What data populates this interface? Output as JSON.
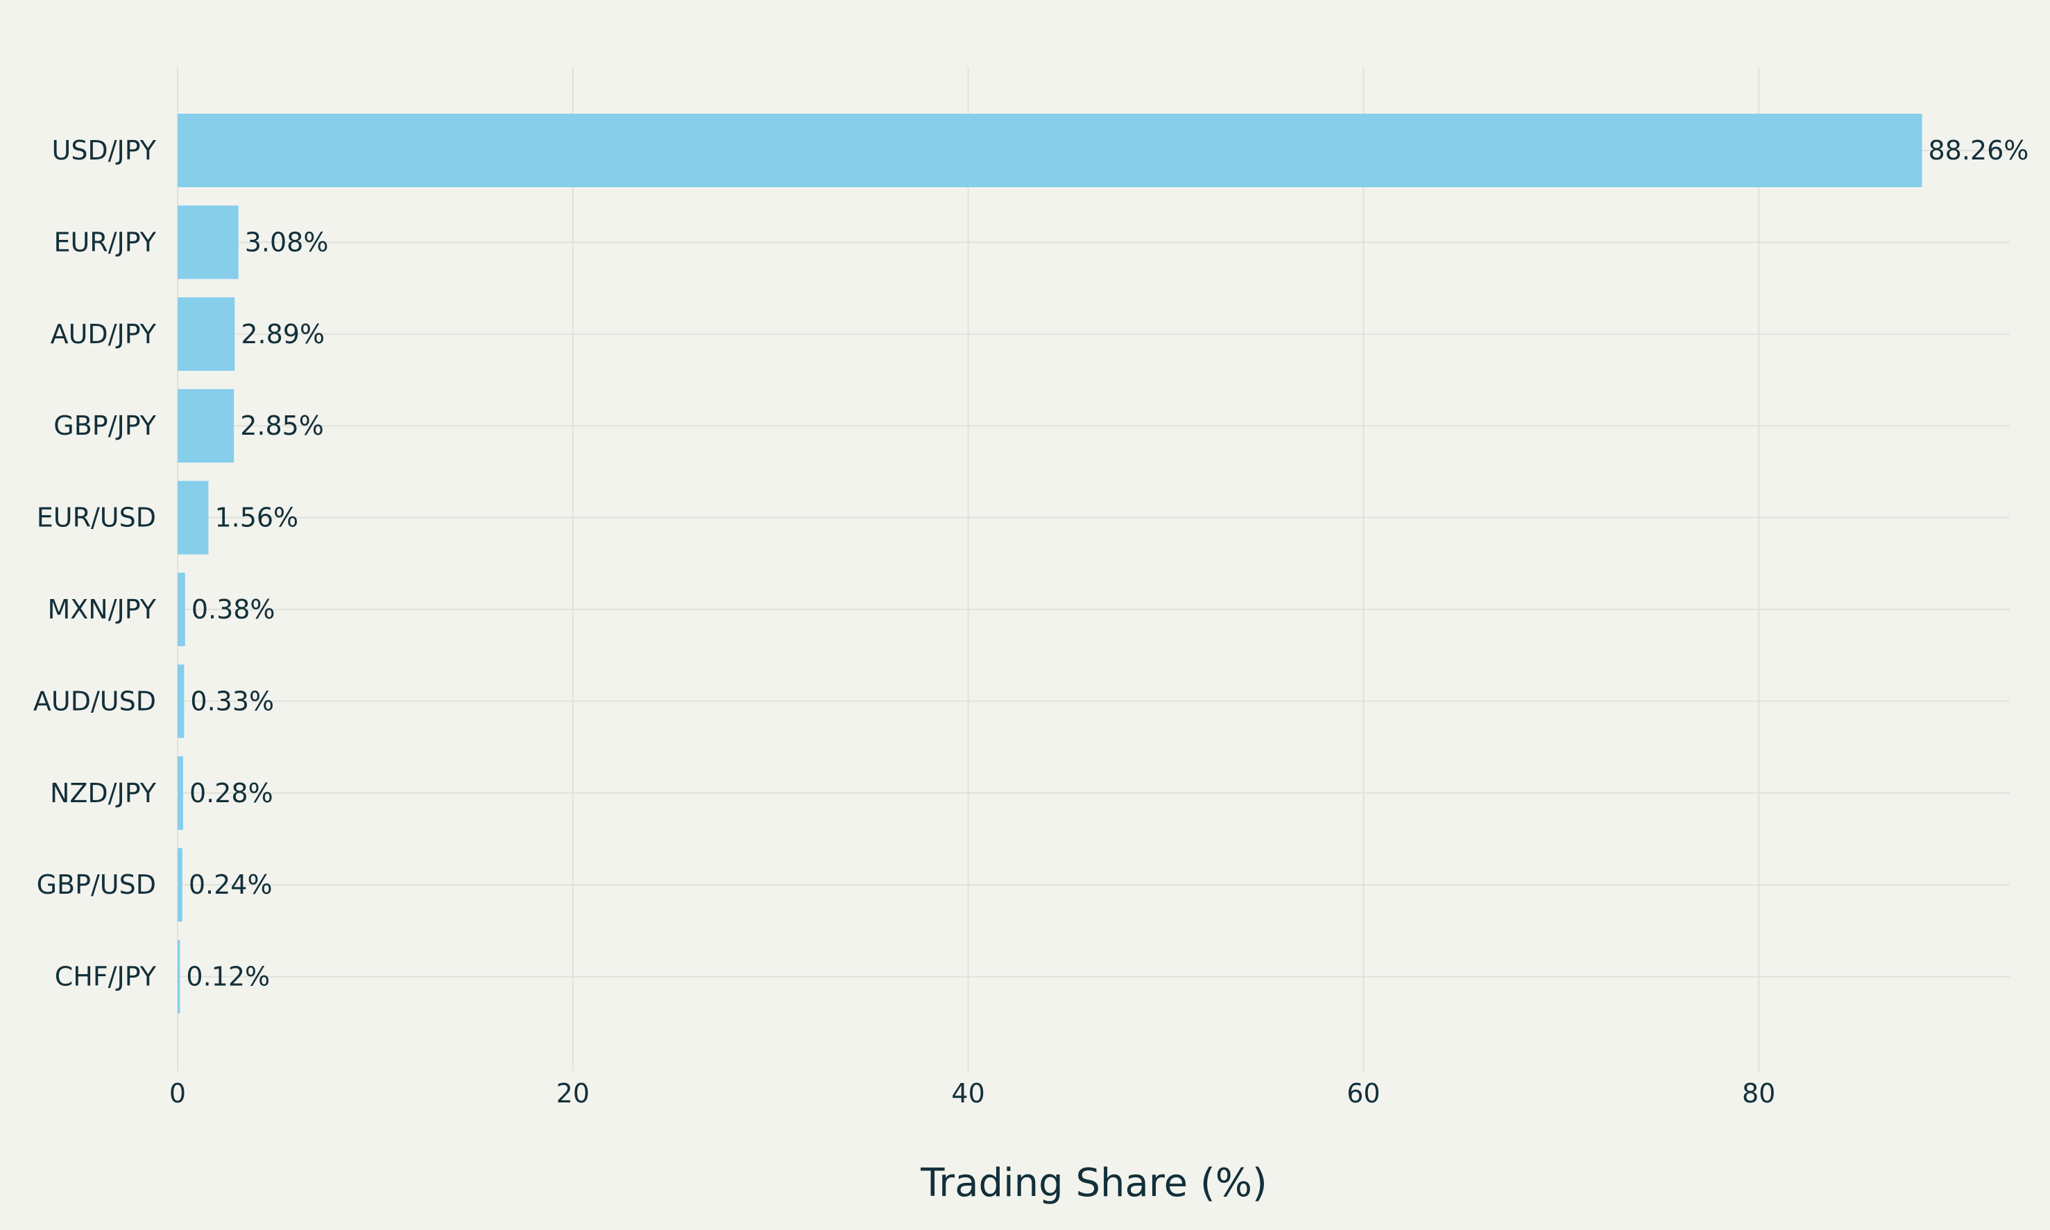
{
  "chart_data": {
    "type": "bar",
    "orientation": "horizontal",
    "title": "",
    "xlabel": "Trading Share (%)",
    "ylabel": "",
    "categories": [
      "USD/JPY",
      "EUR/JPY",
      "AUD/JPY",
      "GBP/JPY",
      "EUR/USD",
      "MXN/JPY",
      "AUD/USD",
      "NZD/JPY",
      "GBP/USD",
      "CHF/JPY"
    ],
    "values": [
      88.26,
      3.08,
      2.89,
      2.85,
      1.56,
      0.38,
      0.33,
      0.28,
      0.24,
      0.12
    ],
    "value_labels": [
      "88.26%",
      "3.08%",
      "2.89%",
      "2.85%",
      "1.56%",
      "0.38%",
      "0.33%",
      "0.28%",
      "0.24%",
      "0.12%"
    ],
    "xlim": [
      0,
      92.7
    ],
    "xticks": [
      0,
      20,
      40,
      60,
      80
    ],
    "xtick_labels": [
      "0",
      "20",
      "40",
      "60",
      "80"
    ],
    "grid": true,
    "legend": "none",
    "colors": {
      "bar": "#87ceeb",
      "background": "#f3f3ee",
      "grid": "#e2e2dc",
      "text": "#13303a"
    }
  }
}
